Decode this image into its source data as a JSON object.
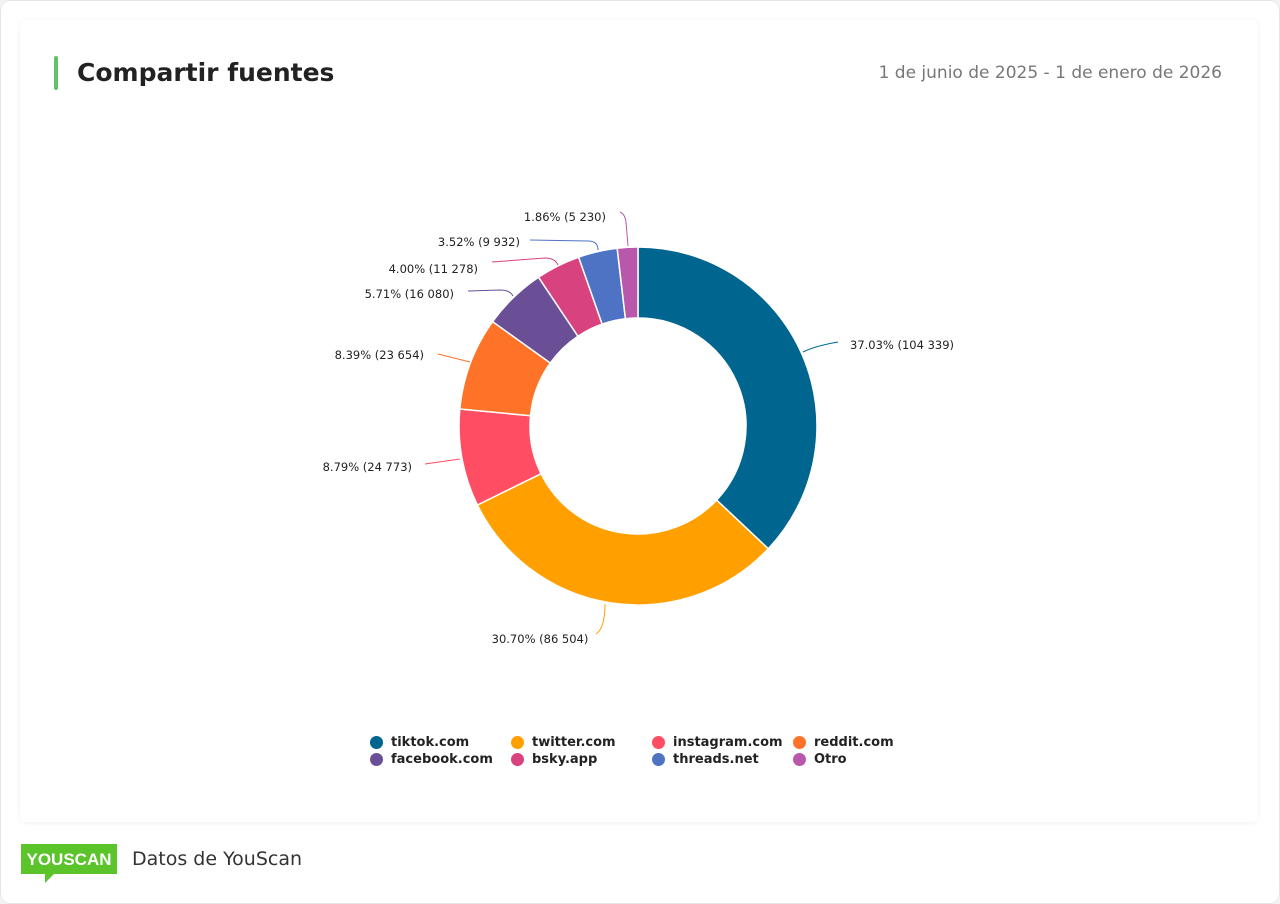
{
  "header": {
    "title": "Compartir fuentes",
    "date_range": "1 de junio de 2025 - 1 de enero de 2026"
  },
  "footer": {
    "logo_text": "YOUSCAN",
    "source": "Datos de YouScan"
  },
  "chart_data": {
    "type": "pie",
    "donut": true,
    "legend_position": "bottom",
    "categories": [
      "tiktok.com",
      "twitter.com",
      "instagram.com",
      "reddit.com",
      "facebook.com",
      "bsky.app",
      "threads.net",
      "Otro"
    ],
    "values": [
      104339,
      86504,
      24773,
      23654,
      16080,
      11278,
      9932,
      5230
    ],
    "percents": [
      37.03,
      30.7,
      8.79,
      8.39,
      5.71,
      4.0,
      3.52,
      1.86
    ],
    "data_labels": [
      "37.03% (104 339)",
      "30.70% (86 504)",
      "8.79% (24 773)",
      "8.39% (23 654)",
      "5.71% (16 080)",
      "4.00% (11 278)",
      "3.52% (9 932)",
      "1.86% (5 230)"
    ],
    "colors": [
      "#00658f",
      "#ffa000",
      "#ff4d64",
      "#ff7328",
      "#6a4f96",
      "#d8427f",
      "#4e72c4",
      "#b957aa"
    ]
  }
}
